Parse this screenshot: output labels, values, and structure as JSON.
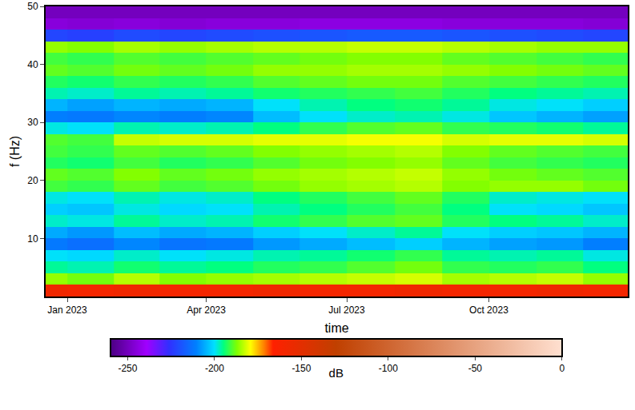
{
  "chart_data": {
    "type": "heatmap",
    "x_label": "time",
    "y_label": "f (Hz)",
    "x": [
      "2022-12",
      "2023-01",
      "2023-02",
      "2023-03",
      "2023-04",
      "2023-05",
      "2023-06",
      "2023-07",
      "2023-08",
      "2023-09",
      "2023-10",
      "2023-11",
      "2023-12"
    ],
    "y": [
      1,
      3,
      5,
      7,
      9,
      11,
      13,
      15,
      17,
      19,
      21,
      23,
      25,
      27,
      29,
      31,
      33,
      35,
      37,
      39,
      41,
      43,
      45,
      47,
      49
    ],
    "z": [
      [
        -158,
        -160,
        -158,
        -160,
        -160,
        -158,
        -160,
        -160,
        -158,
        -160,
        -160,
        -158,
        -160
      ],
      [
        -186,
        -188,
        -184,
        -187,
        -186,
        -185,
        -184,
        -183,
        -182,
        -185,
        -184,
        -183,
        -186
      ],
      [
        -196,
        -197,
        -194,
        -196,
        -195,
        -193,
        -192,
        -190,
        -188,
        -192,
        -193,
        -192,
        -195
      ],
      [
        -200,
        -201,
        -198,
        -200,
        -199,
        -197,
        -196,
        -194,
        -192,
        -196,
        -197,
        -196,
        -199
      ],
      [
        -212,
        -214,
        -210,
        -213,
        -212,
        -208,
        -206,
        -204,
        -202,
        -205,
        -207,
        -208,
        -211
      ],
      [
        -206,
        -208,
        -204,
        -206,
        -205,
        -202,
        -200,
        -198,
        -196,
        -200,
        -202,
        -203,
        -205
      ],
      [
        -198,
        -199,
        -196,
        -198,
        -197,
        -194,
        -192,
        -190,
        -189,
        -193,
        -195,
        -196,
        -198
      ],
      [
        -202,
        -203,
        -199,
        -201,
        -200,
        -197,
        -195,
        -193,
        -191,
        -195,
        -200,
        -201,
        -203
      ],
      [
        -199,
        -200,
        -197,
        -199,
        -198,
        -195,
        -193,
        -191,
        -189,
        -193,
        -198,
        -199,
        -200
      ],
      [
        -191,
        -192,
        -189,
        -191,
        -190,
        -188,
        -186,
        -185,
        -184,
        -187,
        -186,
        -186,
        -188
      ],
      [
        -189,
        -190,
        -187,
        -189,
        -188,
        -186,
        -185,
        -184,
        -183,
        -186,
        -188,
        -189,
        -190
      ],
      [
        -193,
        -194,
        -191,
        -193,
        -192,
        -190,
        -188,
        -187,
        -186,
        -189,
        -191,
        -192,
        -193
      ],
      [
        -191,
        -192,
        -189,
        -190,
        -189,
        -187,
        -186,
        -185,
        -184,
        -187,
        -189,
        -190,
        -191
      ],
      [
        -190,
        -191,
        -183,
        -182,
        -182,
        -181,
        -181,
        -180,
        -180,
        -182,
        -181,
        -181,
        -182
      ],
      [
        -199,
        -200,
        -197,
        -198,
        -197,
        -195,
        -192,
        -190,
        -189,
        -192,
        -193,
        -194,
        -196
      ],
      [
        -211,
        -212,
        -210,
        -211,
        -210,
        -204,
        -200,
        -198,
        -197,
        -199,
        -203,
        -205,
        -207
      ],
      [
        -205,
        -207,
        -205,
        -206,
        -205,
        -200,
        -197,
        -195,
        -194,
        -196,
        -199,
        -200,
        -202
      ],
      [
        -197,
        -198,
        -196,
        -197,
        -196,
        -194,
        -193,
        -192,
        -191,
        -193,
        -195,
        -196,
        -197
      ],
      [
        -193,
        -194,
        -192,
        -193,
        -192,
        -190,
        -189,
        -188,
        -188,
        -190,
        -191,
        -192,
        -193
      ],
      [
        -189,
        -190,
        -188,
        -189,
        -188,
        -186,
        -186,
        -185,
        -185,
        -186,
        -187,
        -188,
        -189
      ],
      [
        -191,
        -192,
        -190,
        -191,
        -190,
        -189,
        -188,
        -187,
        -187,
        -189,
        -190,
        -191,
        -192
      ],
      [
        -186,
        -187,
        -185,
        -186,
        -185,
        -184,
        -184,
        -183,
        -183,
        -184,
        -185,
        -186,
        -186
      ],
      [
        -222,
        -223,
        -221,
        -222,
        -221,
        -220,
        -219,
        -218,
        -218,
        -219,
        -220,
        -221,
        -222
      ],
      [
        -245,
        -246,
        -245,
        -246,
        -245,
        -245,
        -244,
        -244,
        -244,
        -245,
        -245,
        -245,
        -246
      ],
      [
        -250,
        -250,
        -250,
        -250,
        -250,
        -250,
        -250,
        -250,
        -250,
        -250,
        -250,
        -250,
        -250
      ]
    ],
    "xlim": [
      "2022-12-18",
      "2023-12-30"
    ],
    "xticks": [
      {
        "value": "2023-01-01",
        "label": "Jan 2023"
      },
      {
        "value": "2023-04-01",
        "label": "Apr 2023"
      },
      {
        "value": "2023-07-01",
        "label": "Jul 2023"
      },
      {
        "value": "2023-10-01",
        "label": "Oct 2023"
      }
    ],
    "ylim": [
      0,
      50
    ],
    "yticks": [
      10,
      20,
      30,
      40,
      50
    ],
    "colorbar": {
      "label": "dB",
      "range": [
        -260,
        0
      ],
      "ticks": [
        -250,
        -200,
        -150,
        -100,
        -50,
        0
      ]
    },
    "grid": true
  }
}
